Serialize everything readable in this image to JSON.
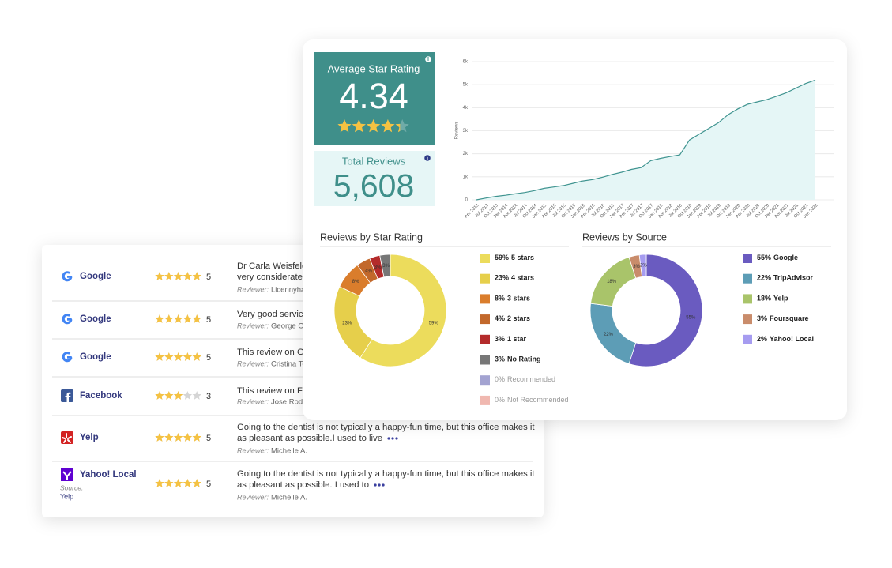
{
  "rating_summary": {
    "average_label": "Average Star Rating",
    "average": 4.34,
    "total_label": "Total Reviews",
    "total": "5,608"
  },
  "chart_data": [
    {
      "type": "line",
      "y_label": "Reviews",
      "color": "#3f9490",
      "grid": true,
      "categories": [
        "Apr 2013",
        "Jul 2013",
        "Oct 2013",
        "Jan 2014",
        "Apr 2014",
        "Jul 2014",
        "Oct 2014",
        "Jan 2015",
        "Apr 2015",
        "Jul 2015",
        "Oct 2015",
        "Jan 2016",
        "Apr 2016",
        "Jul 2016",
        "Oct 2016",
        "Jan 2017",
        "Apr 2017",
        "Jul 2017",
        "Oct 2017",
        "Jan 2018",
        "Apr 2018",
        "Jul 2018",
        "Oct 2018",
        "Jan 2019",
        "Apr 2019",
        "Jul 2019",
        "Oct 2019",
        "Jan 2020",
        "Apr 2020",
        "Jul 2020",
        "Oct 2020",
        "Jan 2021",
        "Apr 2021",
        "Jul 2021",
        "Oct 2021",
        "Jan 2022"
      ],
      "values": [
        0,
        80,
        150,
        200,
        260,
        320,
        400,
        500,
        560,
        620,
        720,
        820,
        880,
        980,
        1100,
        1200,
        1320,
        1400,
        1700,
        1800,
        1880,
        1950,
        2600,
        2850,
        3100,
        3350,
        3700,
        3950,
        4150,
        4250,
        4350,
        4500,
        4650,
        4850,
        5050,
        5200
      ],
      "ylim": [
        0,
        6000
      ],
      "yticks": [
        0,
        {
          "value": 1000,
          "label": "1k"
        },
        {
          "value": 2000,
          "label": "2k"
        },
        {
          "value": 3000,
          "label": "3k"
        },
        {
          "value": 4000,
          "label": "4k"
        },
        {
          "value": 5000,
          "label": "5k"
        },
        {
          "value": 6000,
          "label": "6k"
        }
      ]
    },
    {
      "type": "donut",
      "title": "Reviews by Star Rating",
      "categories": [
        "5 stars",
        "4 stars",
        "3 stars",
        "2 stars",
        "1 star",
        "No Rating",
        "Recommended",
        "Not Recommended"
      ],
      "values": [
        59,
        23,
        8,
        4,
        3,
        3,
        0,
        0
      ],
      "value_labels": [
        "59%",
        "23%",
        "8%",
        "4%",
        "3%",
        "3%",
        "0%",
        "0%"
      ],
      "colors": [
        "#ecdc5c",
        "#e6cf4b",
        "#da7d2c",
        "#c2682b",
        "#b42b2b",
        "#777777",
        "#a3a3d1",
        "#f0b8b0"
      ]
    },
    {
      "type": "donut",
      "title": "Reviews by Source",
      "categories": [
        "Google",
        "TripAdvisor",
        "Yelp",
        "Foursquare",
        "Yahoo! Local"
      ],
      "values": [
        55,
        22,
        18,
        3,
        2
      ],
      "value_labels": [
        "55%",
        "22%",
        "18%",
        "3%",
        "2%"
      ],
      "colors": [
        "#6a5bc0",
        "#5d9db6",
        "#a9c46a",
        "#c98c6b",
        "#a69cf0"
      ]
    }
  ],
  "reviews": {
    "rows": [
      {
        "source": "Google",
        "rating": 5,
        "text_lines": [
          "Dr Carla Weisfeld",
          "very considerate c"
        ],
        "reviewer_label": "Reviewer:",
        "reviewer": "Licennyha"
      },
      {
        "source": "Google",
        "rating": 5,
        "text_lines": [
          "Very good service"
        ],
        "reviewer_label": "Reviewer:",
        "reviewer": "George C"
      },
      {
        "source": "Google",
        "rating": 5,
        "text_lines": [
          "This review on Go"
        ],
        "reviewer_label": "Reviewer:",
        "reviewer": "Cristina To"
      },
      {
        "source": "Facebook",
        "rating": 3,
        "text_lines": [
          "This review on Fa"
        ],
        "reviewer_label": "Reviewer:",
        "reviewer": "Jose Rod"
      },
      {
        "source": "Yelp",
        "rating": 5,
        "text_lines": [
          "Going to the dentist is not typically a happy-fun time, but this office makes it",
          "as pleasant as possible.I used to live"
        ],
        "reviewer_label": "Reviewer:",
        "reviewer": "Michelle A."
      },
      {
        "source": "Yahoo! Local",
        "source_label": "Source:",
        "source_detail": "Yelp",
        "rating": 5,
        "text_lines": [
          "Going to the dentist is not typically a happy-fun time, but this office makes it",
          "as pleasant as possible. I used to"
        ],
        "reviewer_label": "Reviewer:",
        "reviewer": "Michelle A."
      }
    ]
  }
}
